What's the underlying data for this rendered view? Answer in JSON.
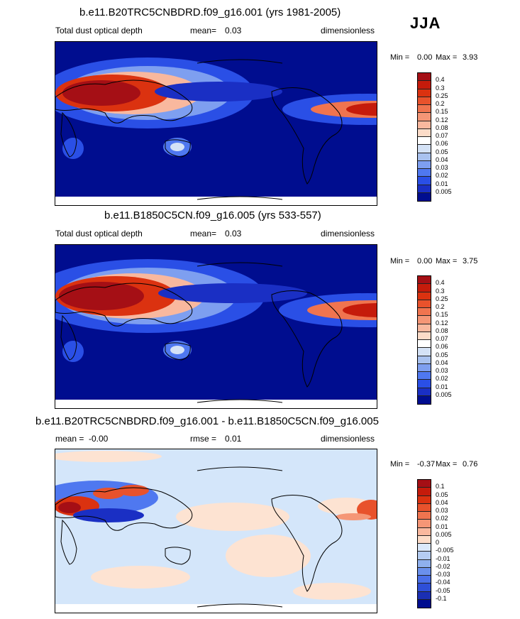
{
  "season": "JJA",
  "panels": [
    {
      "title": "b.e11.B20TRC5CNBDRD.f09_g16.001 (yrs 1981-2005)",
      "left_label": "Total dust optical depth",
      "center_label": "mean=",
      "center_value": "0.03",
      "right_label": "dimensionless",
      "min_label": "Min =",
      "min_value": "0.00",
      "max_label": "Max =",
      "max_value": "3.93"
    },
    {
      "title": "b.e11.B1850C5CN.f09_g16.005 (yrs 533-557)",
      "left_label": "Total dust optical depth",
      "center_label": "mean=",
      "center_value": "0.03",
      "right_label": "dimensionless",
      "min_label": "Min =",
      "min_value": "0.00",
      "max_label": "Max =",
      "max_value": "3.75"
    },
    {
      "title": "b.e11.B20TRC5CNBDRD.f09_g16.001 - b.e11.B1850C5CN.f09_g16.005",
      "left_label": "mean =",
      "left_value": "-0.00",
      "center_label": "rmse =",
      "center_value": "0.01",
      "right_label": "dimensionless",
      "min_label": "Min =",
      "min_value": "-0.37",
      "max_label": "Max =",
      "max_value": "0.76"
    }
  ],
  "chart_data": [
    {
      "type": "heatmap",
      "title": "b.e11.B20TRC5CNBDRD.f09_g16.001 (yrs 1981-2005)",
      "variable": "Total dust optical depth",
      "units": "dimensionless",
      "mean": 0.03,
      "min": 0.0,
      "max": 3.93,
      "colorbar_levels": [
        "0.4",
        "0.3",
        "0.25",
        "0.2",
        "0.15",
        "0.12",
        "0.08",
        "0.07",
        "0.06",
        "0.05",
        "0.04",
        "0.03",
        "0.02",
        "0.01",
        "0.005"
      ],
      "colorbar_colors": [
        "#a50f15",
        "#c51b0b",
        "#db3210",
        "#e8522c",
        "#f0744f",
        "#f59676",
        "#f9b89e",
        "#fcdcc8",
        "#ffffff",
        "#d4e2f6",
        "#a9c2ef",
        "#7e9ff0",
        "#4f78f0",
        "#2a4fe6",
        "#1a2fc4",
        "#000d8f"
      ]
    },
    {
      "type": "heatmap",
      "title": "b.e11.B1850C5CN.f09_g16.005 (yrs 533-557)",
      "variable": "Total dust optical depth",
      "units": "dimensionless",
      "mean": 0.03,
      "min": 0.0,
      "max": 3.75,
      "colorbar_levels": [
        "0.4",
        "0.3",
        "0.25",
        "0.2",
        "0.15",
        "0.12",
        "0.08",
        "0.07",
        "0.06",
        "0.05",
        "0.04",
        "0.03",
        "0.02",
        "0.01",
        "0.005"
      ],
      "colorbar_colors": [
        "#a50f15",
        "#c51b0b",
        "#db3210",
        "#e8522c",
        "#f0744f",
        "#f59676",
        "#f9b89e",
        "#fcdcc8",
        "#ffffff",
        "#d4e2f6",
        "#a9c2ef",
        "#7e9ff0",
        "#4f78f0",
        "#2a4fe6",
        "#1a2fc4",
        "#000d8f"
      ]
    },
    {
      "type": "heatmap",
      "title": "b.e11.B20TRC5CNBDRD.f09_g16.001 - b.e11.B1850C5CN.f09_g16.005",
      "units": "dimensionless",
      "mean": -0.0,
      "rmse": 0.01,
      "min": -0.37,
      "max": 0.76,
      "colorbar_levels": [
        "0.1",
        "0.05",
        "0.04",
        "0.03",
        "0.02",
        "0.01",
        "0.005",
        "0",
        "-0.005",
        "-0.01",
        "-0.02",
        "-0.03",
        "-0.04",
        "-0.05",
        "-0.1"
      ],
      "colorbar_colors": [
        "#a50f15",
        "#c51b0b",
        "#db3210",
        "#e8522c",
        "#f0744f",
        "#f59676",
        "#f9b89e",
        "#fcdcc8",
        "#dbe9fa",
        "#b5cdf2",
        "#8fb0ee",
        "#6a90ec",
        "#4a6fe8",
        "#2e4fd8",
        "#1a2fb4",
        "#000d8f"
      ]
    }
  ]
}
